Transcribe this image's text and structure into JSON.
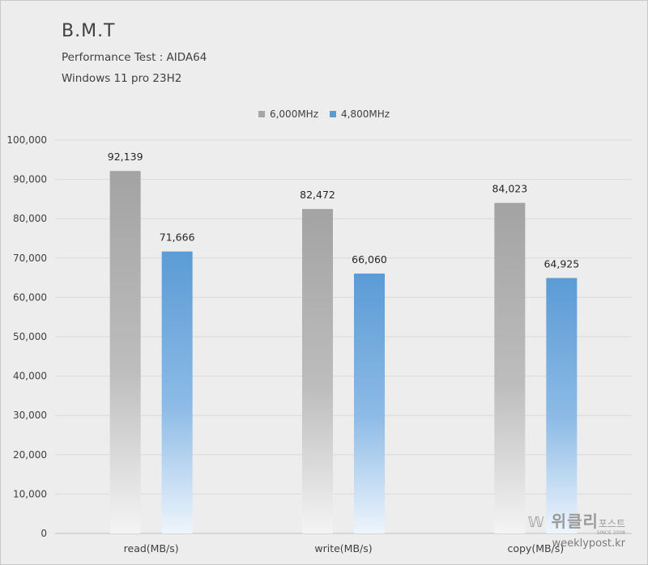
{
  "header": {
    "title": "B.M.T",
    "subtitle1": "Performance Test : AIDA64",
    "subtitle2": "Windows 11 pro 23H2"
  },
  "colors": {
    "series1": "#a6a6a6",
    "series2": "#5b9bd5",
    "gridline": "#d9d9d9",
    "text": "#404040"
  },
  "watermark": {
    "logo": "위클리",
    "logo_suffix": "포스트",
    "since": "SINCE 2008",
    "url": "weeklypost.kr"
  },
  "chart_data": {
    "type": "bar",
    "title": "B.M.T",
    "categories": [
      "read(MB/s)",
      "write(MB/s)",
      "copy(MB/s)"
    ],
    "series": [
      {
        "name": "6,000MHz",
        "values": [
          92139,
          82472,
          84023
        ]
      },
      {
        "name": "4,800MHz",
        "values": [
          71666,
          66060,
          64925
        ]
      }
    ],
    "ylim": [
      0,
      100000
    ],
    "yticks": [
      0,
      10000,
      20000,
      30000,
      40000,
      50000,
      60000,
      70000,
      80000,
      90000,
      100000
    ],
    "ytick_labels": [
      "0",
      "10,000",
      "20,000",
      "30,000",
      "40,000",
      "50,000",
      "60,000",
      "70,000",
      "80,000",
      "90,000",
      "100,000"
    ],
    "xlabel": "",
    "ylabel": "",
    "grid": true,
    "legend_position": "top-center"
  }
}
